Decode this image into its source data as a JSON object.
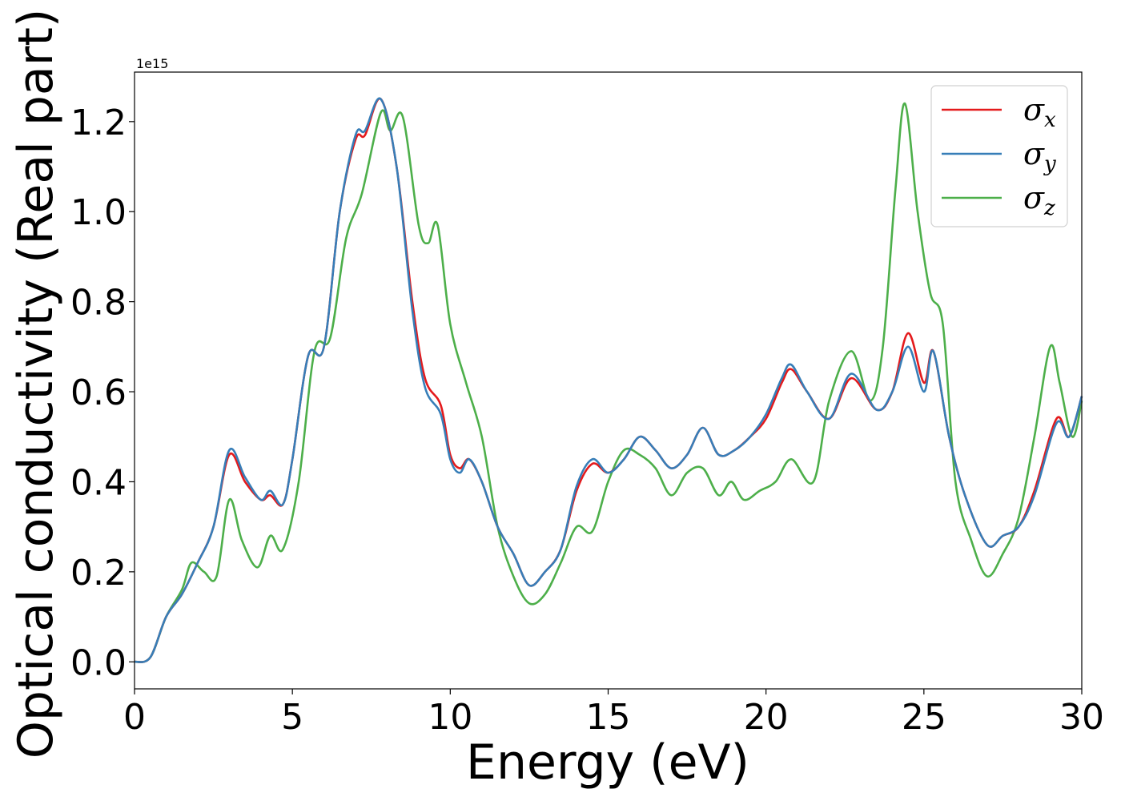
{
  "chart_data": {
    "type": "line",
    "xlabel": "Energy (eV)",
    "ylabel": "Optical conductivity (Real part)",
    "y_offset_label": "1e15",
    "xlim": [
      0,
      30
    ],
    "ylim": [
      -0.06,
      1.31
    ],
    "xticks": [
      0,
      5,
      10,
      15,
      20,
      25,
      30
    ],
    "xtick_labels": [
      "0",
      "5",
      "10",
      "15",
      "20",
      "25",
      "30"
    ],
    "yticks": [
      0.0,
      0.2,
      0.4,
      0.6,
      0.8,
      1.0,
      1.2
    ],
    "ytick_labels": [
      "0.0",
      "0.2",
      "0.4",
      "0.6",
      "0.8",
      "1.0",
      "1.2"
    ],
    "grid": false,
    "legend_position": "top-right",
    "series": [
      {
        "name": "σx",
        "symbol": "σ",
        "sub": "x",
        "color": "#e41a1c",
        "points": [
          [
            0,
            0
          ],
          [
            0.5,
            0.01
          ],
          [
            1,
            0.1
          ],
          [
            1.5,
            0.15
          ],
          [
            2,
            0.22
          ],
          [
            2.5,
            0.3
          ],
          [
            3,
            0.46
          ],
          [
            3.5,
            0.4
          ],
          [
            4,
            0.36
          ],
          [
            4.3,
            0.37
          ],
          [
            4.7,
            0.35
          ],
          [
            5,
            0.45
          ],
          [
            5.5,
            0.68
          ],
          [
            6,
            0.7
          ],
          [
            6.5,
            1.0
          ],
          [
            7,
            1.16
          ],
          [
            7.3,
            1.17
          ],
          [
            7.8,
            1.25
          ],
          [
            8.3,
            1.1
          ],
          [
            8.8,
            0.8
          ],
          [
            9.2,
            0.63
          ],
          [
            9.7,
            0.57
          ],
          [
            10,
            0.46
          ],
          [
            10.3,
            0.43
          ],
          [
            10.6,
            0.45
          ],
          [
            11,
            0.4
          ],
          [
            11.5,
            0.3
          ],
          [
            12,
            0.24
          ],
          [
            12.5,
            0.17
          ],
          [
            13,
            0.2
          ],
          [
            13.5,
            0.25
          ],
          [
            14,
            0.38
          ],
          [
            14.5,
            0.44
          ],
          [
            15,
            0.42
          ],
          [
            15.5,
            0.45
          ],
          [
            16,
            0.5
          ],
          [
            16.5,
            0.47
          ],
          [
            17,
            0.43
          ],
          [
            17.5,
            0.46
          ],
          [
            18,
            0.52
          ],
          [
            18.5,
            0.46
          ],
          [
            19,
            0.47
          ],
          [
            19.5,
            0.5
          ],
          [
            20,
            0.54
          ],
          [
            20.5,
            0.62
          ],
          [
            20.8,
            0.65
          ],
          [
            21.3,
            0.6
          ],
          [
            22,
            0.54
          ],
          [
            22.7,
            0.63
          ],
          [
            23.5,
            0.56
          ],
          [
            24,
            0.6
          ],
          [
            24.5,
            0.73
          ],
          [
            25,
            0.62
          ],
          [
            25.3,
            0.69
          ],
          [
            25.8,
            0.5
          ],
          [
            26.3,
            0.37
          ],
          [
            27,
            0.26
          ],
          [
            27.5,
            0.28
          ],
          [
            28,
            0.3
          ],
          [
            28.5,
            0.38
          ],
          [
            29.2,
            0.54
          ],
          [
            29.6,
            0.5
          ],
          [
            30,
            0.59
          ]
        ]
      },
      {
        "name": "σy",
        "symbol": "σ",
        "sub": "y",
        "color": "#377eb8",
        "points": [
          [
            0,
            0
          ],
          [
            0.5,
            0.01
          ],
          [
            1,
            0.1
          ],
          [
            1.5,
            0.15
          ],
          [
            2,
            0.22
          ],
          [
            2.5,
            0.3
          ],
          [
            3,
            0.47
          ],
          [
            3.5,
            0.41
          ],
          [
            4,
            0.36
          ],
          [
            4.3,
            0.38
          ],
          [
            4.7,
            0.35
          ],
          [
            5,
            0.45
          ],
          [
            5.5,
            0.68
          ],
          [
            6,
            0.7
          ],
          [
            6.5,
            1.0
          ],
          [
            7,
            1.17
          ],
          [
            7.3,
            1.18
          ],
          [
            7.8,
            1.25
          ],
          [
            8.3,
            1.1
          ],
          [
            8.8,
            0.78
          ],
          [
            9.2,
            0.61
          ],
          [
            9.7,
            0.55
          ],
          [
            10,
            0.45
          ],
          [
            10.3,
            0.42
          ],
          [
            10.6,
            0.45
          ],
          [
            11,
            0.4
          ],
          [
            11.5,
            0.3
          ],
          [
            12,
            0.24
          ],
          [
            12.5,
            0.17
          ],
          [
            13,
            0.2
          ],
          [
            13.5,
            0.25
          ],
          [
            14,
            0.39
          ],
          [
            14.5,
            0.45
          ],
          [
            15,
            0.42
          ],
          [
            15.5,
            0.45
          ],
          [
            16,
            0.5
          ],
          [
            16.5,
            0.47
          ],
          [
            17,
            0.43
          ],
          [
            17.5,
            0.46
          ],
          [
            18,
            0.52
          ],
          [
            18.5,
            0.46
          ],
          [
            19,
            0.47
          ],
          [
            19.5,
            0.5
          ],
          [
            20,
            0.55
          ],
          [
            20.5,
            0.63
          ],
          [
            20.8,
            0.66
          ],
          [
            21.3,
            0.6
          ],
          [
            22,
            0.54
          ],
          [
            22.7,
            0.64
          ],
          [
            23.5,
            0.56
          ],
          [
            24,
            0.6
          ],
          [
            24.5,
            0.7
          ],
          [
            25,
            0.6
          ],
          [
            25.3,
            0.69
          ],
          [
            25.8,
            0.5
          ],
          [
            26.3,
            0.37
          ],
          [
            27,
            0.26
          ],
          [
            27.5,
            0.28
          ],
          [
            28,
            0.3
          ],
          [
            28.5,
            0.37
          ],
          [
            29.2,
            0.53
          ],
          [
            29.6,
            0.5
          ],
          [
            30,
            0.59
          ]
        ]
      },
      {
        "name": "σz",
        "symbol": "σ",
        "sub": "z",
        "color": "#4daf4a",
        "points": [
          [
            0,
            0
          ],
          [
            0.5,
            0.01
          ],
          [
            1,
            0.1
          ],
          [
            1.5,
            0.16
          ],
          [
            1.8,
            0.22
          ],
          [
            2.2,
            0.2
          ],
          [
            2.6,
            0.19
          ],
          [
            3,
            0.36
          ],
          [
            3.4,
            0.27
          ],
          [
            3.9,
            0.21
          ],
          [
            4.3,
            0.28
          ],
          [
            4.7,
            0.25
          ],
          [
            5.2,
            0.4
          ],
          [
            5.7,
            0.69
          ],
          [
            6.2,
            0.72
          ],
          [
            6.7,
            0.94
          ],
          [
            7.2,
            1.04
          ],
          [
            7.8,
            1.22
          ],
          [
            8.1,
            1.18
          ],
          [
            8.5,
            1.21
          ],
          [
            9,
            0.97
          ],
          [
            9.3,
            0.93
          ],
          [
            9.6,
            0.97
          ],
          [
            10,
            0.75
          ],
          [
            10.5,
            0.62
          ],
          [
            11,
            0.5
          ],
          [
            11.5,
            0.3
          ],
          [
            12,
            0.19
          ],
          [
            12.5,
            0.13
          ],
          [
            13,
            0.15
          ],
          [
            13.5,
            0.22
          ],
          [
            14,
            0.3
          ],
          [
            14.5,
            0.29
          ],
          [
            15,
            0.4
          ],
          [
            15.5,
            0.47
          ],
          [
            16,
            0.46
          ],
          [
            16.5,
            0.43
          ],
          [
            17,
            0.37
          ],
          [
            17.5,
            0.42
          ],
          [
            18,
            0.43
          ],
          [
            18.5,
            0.37
          ],
          [
            18.9,
            0.4
          ],
          [
            19.3,
            0.36
          ],
          [
            19.8,
            0.38
          ],
          [
            20.3,
            0.4
          ],
          [
            20.8,
            0.45
          ],
          [
            21.5,
            0.4
          ],
          [
            22,
            0.58
          ],
          [
            22.7,
            0.69
          ],
          [
            23.3,
            0.58
          ],
          [
            23.7,
            0.7
          ],
          [
            24.1,
            1.05
          ],
          [
            24.4,
            1.24
          ],
          [
            24.8,
            1.0
          ],
          [
            25.2,
            0.82
          ],
          [
            25.6,
            0.75
          ],
          [
            26,
            0.4
          ],
          [
            26.5,
            0.27
          ],
          [
            27,
            0.19
          ],
          [
            27.5,
            0.24
          ],
          [
            28,
            0.32
          ],
          [
            28.5,
            0.5
          ],
          [
            29,
            0.7
          ],
          [
            29.3,
            0.62
          ],
          [
            29.7,
            0.5
          ],
          [
            30,
            0.58
          ]
        ]
      }
    ]
  }
}
